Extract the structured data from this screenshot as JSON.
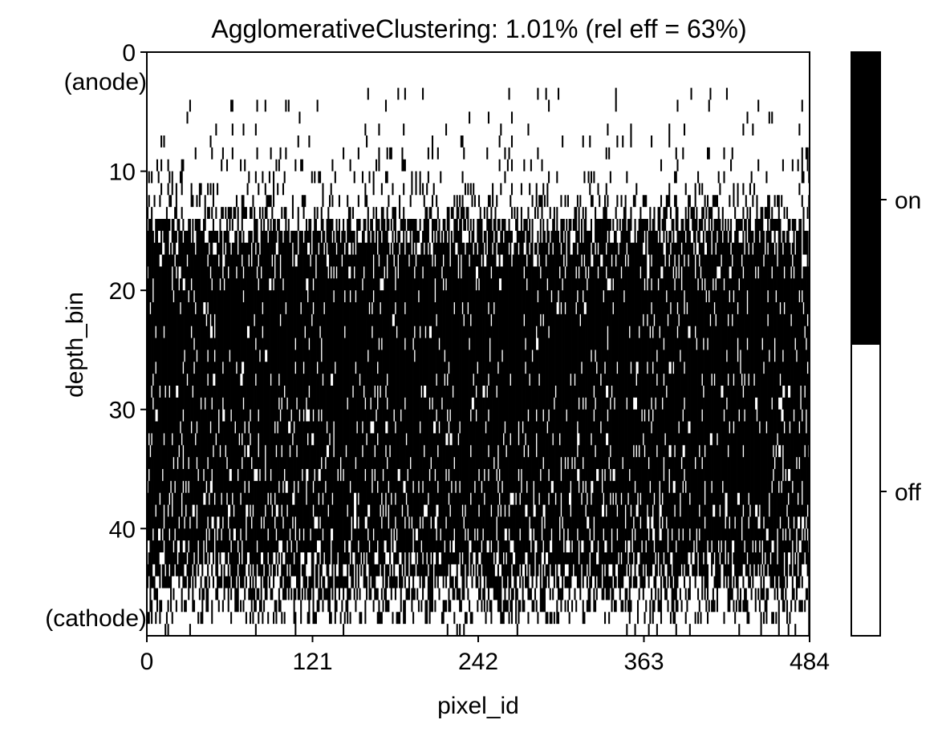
{
  "chart_data": {
    "type": "heatmap",
    "title": "AgglomerativeClustering: 1.01% (rel eff = 63%)",
    "xlabel": "pixel_id",
    "ylabel": "depth_bin",
    "x_range": [
      0,
      484
    ],
    "y_range": [
      0,
      49
    ],
    "y_inverted": true,
    "x_ticks": [
      "0",
      "121",
      "242",
      "363",
      "484"
    ],
    "y_ticks": [
      "0",
      "10",
      "20",
      "30",
      "40"
    ],
    "y_end_labels": {
      "top": "(anode)",
      "bottom": "(cathode)"
    },
    "colorbar": {
      "levels": [
        "off",
        "on"
      ],
      "colors": [
        "#ffffff",
        "#000000"
      ]
    },
    "occupancy_profile": {
      "depth_bins": [
        0,
        1,
        2,
        3,
        4,
        5,
        6,
        7,
        8,
        9,
        10,
        11,
        12,
        13,
        14,
        15,
        16,
        17,
        18,
        19,
        20,
        21,
        22,
        23,
        24,
        25,
        26,
        27,
        28,
        29,
        30,
        31,
        32,
        33,
        34,
        35,
        36,
        37,
        38,
        39,
        40,
        41,
        42,
        43,
        44,
        45,
        46,
        47,
        48
      ],
      "fraction_on": [
        0,
        0,
        0,
        0.02,
        0.02,
        0.02,
        0.03,
        0.03,
        0.05,
        0.06,
        0.08,
        0.12,
        0.2,
        0.3,
        0.5,
        0.7,
        0.8,
        0.82,
        0.86,
        0.9,
        0.92,
        0.93,
        0.94,
        0.94,
        0.94,
        0.94,
        0.93,
        0.93,
        0.92,
        0.92,
        0.91,
        0.91,
        0.9,
        0.9,
        0.89,
        0.88,
        0.87,
        0.86,
        0.85,
        0.83,
        0.8,
        0.75,
        0.7,
        0.62,
        0.55,
        0.45,
        0.35,
        0.22,
        0.05
      ]
    },
    "sparse_hits_depth_range": [
      3,
      12
    ],
    "dense_region_depth_range": [
      15,
      46
    ],
    "colors": {
      "on": "#000000",
      "off": "#ffffff"
    }
  }
}
